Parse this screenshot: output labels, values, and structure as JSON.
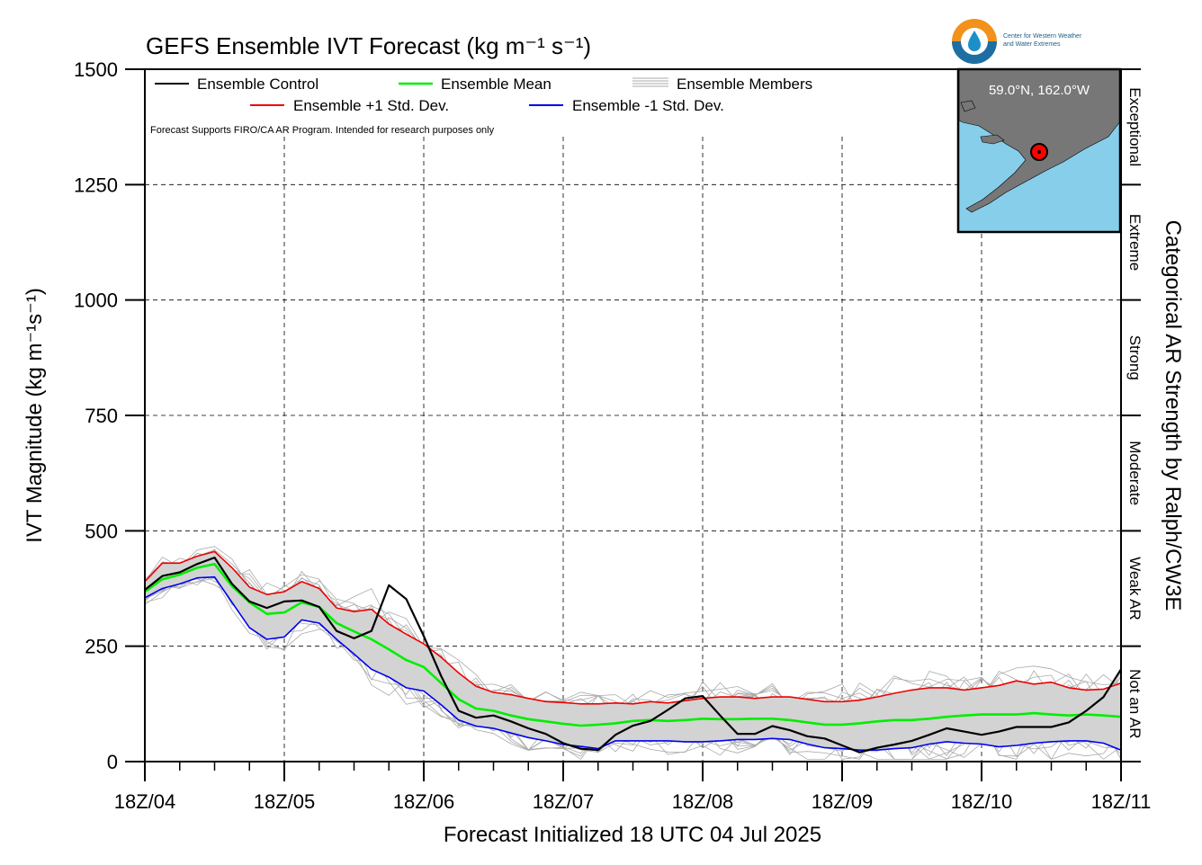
{
  "chart_data": {
    "type": "line",
    "title": "GEFS Ensemble IVT Forecast (kg m⁻¹ s⁻¹)",
    "xlabel": "Forecast Initialized 18 UTC 04 Jul 2025",
    "ylabel": "IVT Magnitude (kg m⁻¹s⁻¹)",
    "right_label": "Categorical AR Strength by Ralph/CW3E",
    "ylim": [
      0,
      1500
    ],
    "yticks": [
      0,
      250,
      500,
      750,
      1000,
      1250,
      1500
    ],
    "xlim": [
      0,
      168
    ],
    "xticks": [
      {
        "t": 0,
        "label": "18Z/04"
      },
      {
        "t": 24,
        "label": "18Z/05"
      },
      {
        "t": 48,
        "label": "18Z/06"
      },
      {
        "t": 72,
        "label": "18Z/07"
      },
      {
        "t": 96,
        "label": "18Z/08"
      },
      {
        "t": 120,
        "label": "18Z/09"
      },
      {
        "t": 144,
        "label": "18Z/10"
      },
      {
        "t": 168,
        "label": "18Z/11"
      }
    ],
    "categories": [
      {
        "label": "Not an AR",
        "from": 0,
        "to": 250
      },
      {
        "label": "Weak AR",
        "from": 250,
        "to": 500
      },
      {
        "label": "Moderate",
        "from": 500,
        "to": 750
      },
      {
        "label": "Strong",
        "from": 750,
        "to": 1000
      },
      {
        "label": "Extreme",
        "from": 1000,
        "to": 1250
      },
      {
        "label": "Exceptional",
        "from": 1250,
        "to": 1500
      }
    ],
    "grid": true,
    "legend_position": "top-left",
    "note": "Forecast Supports FIRO/CA AR Program. Intended for research purposes only",
    "inset_label": "59.0°N, 162.0°W",
    "logo_text": [
      "Center for Western Weather",
      "and Water Extremes"
    ],
    "colors": {
      "control": "#000000",
      "mean": "#00ee00",
      "plus_sd": "#ee0000",
      "minus_sd": "#0000ee",
      "members": "#aaaaaa",
      "spread": "#d3d3d3",
      "map_water": "#87ceeb",
      "map_land": "#777777",
      "marker": "#ff0000"
    },
    "x": [
      0,
      3,
      6,
      9,
      12,
      15,
      18,
      21,
      24,
      27,
      30,
      33,
      36,
      39,
      42,
      45,
      48,
      51,
      54,
      57,
      60,
      63,
      66,
      69,
      72,
      75,
      78,
      81,
      84,
      87,
      90,
      93,
      96,
      99,
      102,
      105,
      108,
      111,
      114,
      117,
      120,
      123,
      126,
      129,
      132,
      135,
      138,
      141,
      144,
      147,
      150,
      153,
      156,
      159,
      162,
      165,
      168
    ],
    "series": [
      {
        "name": "Ensemble Control",
        "key": "control",
        "values": [
          372,
          402,
          410,
          428,
          442,
          385,
          347,
          333,
          347,
          349,
          335,
          283,
          267,
          283,
          382,
          352,
          272,
          185,
          110,
          95,
          100,
          87,
          72,
          60,
          40,
          28,
          25,
          58,
          78,
          88,
          112,
          137,
          142,
          100,
          60,
          60,
          77,
          68,
          55,
          50,
          35,
          20,
          30,
          37,
          45,
          58,
          72,
          65,
          58,
          65,
          75,
          75,
          75,
          85,
          110,
          140,
          200
        ]
      },
      {
        "name": "Ensemble Mean",
        "key": "mean",
        "values": [
          368,
          395,
          405,
          420,
          428,
          380,
          345,
          320,
          323,
          345,
          335,
          300,
          282,
          265,
          243,
          220,
          205,
          170,
          135,
          115,
          110,
          100,
          92,
          87,
          82,
          78,
          80,
          83,
          88,
          90,
          88,
          90,
          93,
          92,
          92,
          93,
          93,
          90,
          85,
          80,
          80,
          83,
          87,
          90,
          90,
          93,
          97,
          100,
          102,
          102,
          102,
          105,
          102,
          100,
          102,
          100,
          97
        ]
      },
      {
        "name": "Ensemble +1 Std. Dev.",
        "key": "plus_sd",
        "values": [
          390,
          430,
          430,
          445,
          455,
          420,
          378,
          362,
          368,
          390,
          375,
          333,
          325,
          330,
          298,
          276,
          255,
          226,
          192,
          163,
          150,
          145,
          137,
          130,
          128,
          125,
          125,
          127,
          125,
          130,
          127,
          132,
          137,
          140,
          140,
          137,
          140,
          140,
          135,
          130,
          130,
          133,
          140,
          148,
          155,
          160,
          160,
          155,
          160,
          165,
          175,
          168,
          172,
          160,
          155,
          157,
          170
        ]
      },
      {
        "name": "Ensemble -1 Std. Dev.",
        "key": "minus_sd",
        "values": [
          355,
          375,
          385,
          398,
          400,
          345,
          290,
          265,
          270,
          307,
          300,
          265,
          233,
          200,
          183,
          160,
          153,
          123,
          90,
          77,
          72,
          62,
          52,
          45,
          37,
          33,
          28,
          45,
          45,
          45,
          45,
          43,
          43,
          45,
          48,
          48,
          50,
          48,
          38,
          30,
          28,
          25,
          25,
          28,
          30,
          38,
          43,
          40,
          38,
          32,
          35,
          40,
          43,
          45,
          45,
          40,
          25
        ]
      }
    ]
  }
}
